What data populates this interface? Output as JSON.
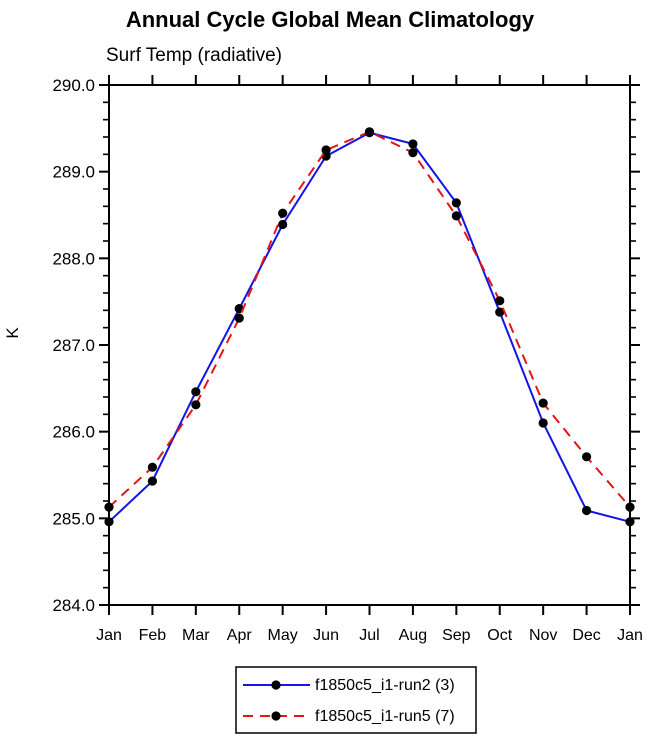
{
  "chart_data": {
    "type": "line",
    "title": "Annual Cycle Global Mean Climatology",
    "subtitle": "Surf Temp (radiative)",
    "xlabel": "",
    "ylabel": "K",
    "ylim": [
      284.0,
      290.0
    ],
    "ytick_interval": 1.0,
    "ytick_minor_interval": 0.2,
    "ytick_labels": [
      "284.0",
      "285.0",
      "286.0",
      "287.0",
      "288.0",
      "289.0",
      "290.0"
    ],
    "x_categories": [
      "Jan",
      "Feb",
      "Mar",
      "Apr",
      "May",
      "Jun",
      "Jul",
      "Aug",
      "Sep",
      "Oct",
      "Nov",
      "Dec",
      "Jan"
    ],
    "grid": false,
    "legend_position": "bottom-center",
    "series": [
      {
        "name": "f1850c5_i1-run2 (3)",
        "color": "#1414e6",
        "line_style": "solid",
        "marker": "circle",
        "marker_color": "#000000",
        "values": [
          284.96,
          285.43,
          286.46,
          287.42,
          288.39,
          289.18,
          289.45,
          289.32,
          288.64,
          287.38,
          286.1,
          285.09,
          284.96
        ]
      },
      {
        "name": "f1850c5_i1-run5 (7)",
        "color": "#e61414",
        "line_style": "dashed",
        "marker": "circle",
        "marker_color": "#000000",
        "values": [
          285.13,
          285.59,
          286.31,
          287.31,
          288.52,
          289.25,
          289.46,
          289.22,
          288.49,
          287.51,
          286.33,
          285.71,
          285.13
        ]
      }
    ],
    "colors": {
      "axis": "#000000",
      "background": "#ffffff"
    }
  }
}
